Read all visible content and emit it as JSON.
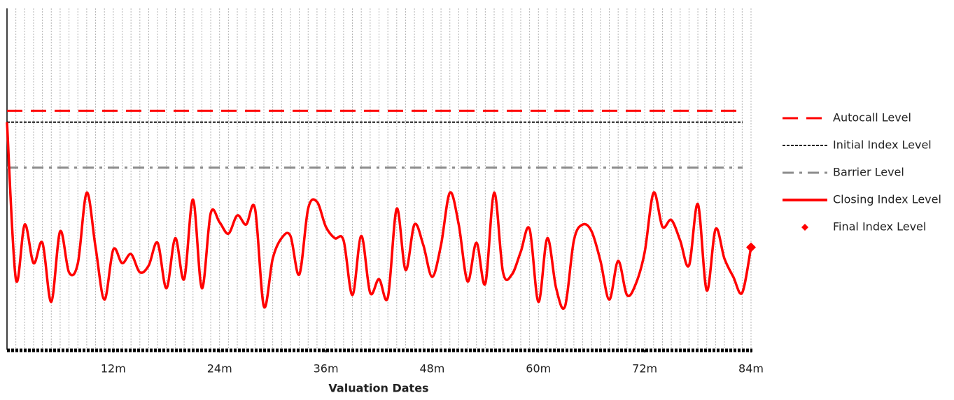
{
  "chart_data": {
    "type": "line",
    "x_label": "Valuation Dates",
    "x": [
      0,
      1,
      2,
      3,
      4,
      5,
      6,
      7,
      8,
      9,
      10,
      11,
      12,
      13,
      14,
      15,
      16,
      17,
      18,
      19,
      20,
      21,
      22,
      23,
      24,
      25,
      26,
      27,
      28,
      29,
      30,
      31,
      32,
      33,
      34,
      35,
      36,
      37,
      38,
      39,
      40,
      41,
      42,
      43,
      44,
      45,
      46,
      47,
      48,
      49,
      50,
      51,
      52,
      53,
      54,
      55,
      56,
      57,
      58,
      59,
      60,
      61,
      62,
      63,
      64,
      65,
      66,
      67,
      68,
      69,
      70,
      71,
      72,
      73,
      74,
      75,
      76,
      77,
      78,
      79,
      80,
      81,
      82,
      83,
      84
    ],
    "xlim": [
      0,
      84
    ],
    "xticks": [
      {
        "value": 12,
        "label": "12m"
      },
      {
        "value": 24,
        "label": "24m"
      },
      {
        "value": 36,
        "label": "36m"
      },
      {
        "value": 48,
        "label": "48m"
      },
      {
        "value": 60,
        "label": "60m"
      },
      {
        "value": 72,
        "label": "72m"
      },
      {
        "value": 84,
        "label": "84m"
      }
    ],
    "ylim": [
      0,
      150
    ],
    "grid": true,
    "levels": [
      {
        "name": "Autocall Level",
        "color": "#ff0000",
        "style": "long-dash",
        "value": 105
      },
      {
        "name": "Initial Index Level",
        "color": "#000000",
        "style": "short-dash",
        "value": 100
      },
      {
        "name": "Barrier Level",
        "color": "#8c8c8c",
        "style": "dash-dot",
        "value": 80
      }
    ],
    "series": [
      {
        "name": "Closing Index Level",
        "color": "#ff0000",
        "values": [
          100,
          31,
          55,
          38,
          47,
          21,
          52,
          34,
          38,
          69,
          45,
          22,
          44,
          38,
          42,
          34,
          37,
          47,
          27,
          49,
          31,
          66,
          27,
          60,
          56,
          51,
          59,
          55,
          62,
          19,
          40,
          49,
          50,
          33,
          62,
          65,
          54,
          49,
          48,
          24,
          50,
          25,
          31,
          23,
          62,
          35,
          55,
          46,
          32,
          46,
          69,
          55,
          30,
          47,
          29,
          69,
          34,
          33,
          43,
          53,
          21,
          49,
          27,
          19,
          48,
          55,
          52,
          39,
          22,
          39,
          24,
          29,
          43,
          69,
          54,
          57,
          48,
          37,
          64,
          26,
          53,
          40,
          32,
          25,
          45
        ]
      }
    ],
    "final": {
      "name": "Final Index Level",
      "color": "#ff0000",
      "x": 84,
      "value": 45
    }
  }
}
